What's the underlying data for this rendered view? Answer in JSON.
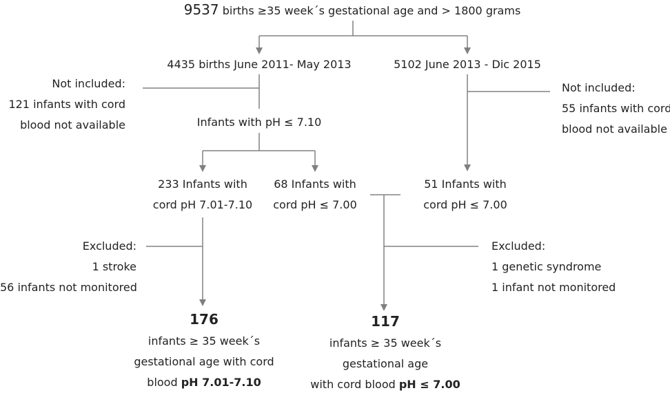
{
  "top": {
    "count": "9537",
    "label": "births ≥35 week´s gestational age and > 1800 grams"
  },
  "left_branch": {
    "title": "4435 births June 2011- May 2013",
    "not_included": [
      "Not included:",
      "121 infants with cord",
      "blood not available"
    ],
    "filter": "Infants with pH ≤ 7.10",
    "group_a": [
      "233 Infants with",
      "cord pH 7.01-7.10"
    ],
    "group_b": [
      "68 Infants with",
      "cord pH ≤ 7.00"
    ],
    "excluded": [
      "Excluded:",
      "1 stroke",
      "56 infants not monitored"
    ]
  },
  "right_branch": {
    "title": "5102 June 2013 - Dic 2015",
    "not_included": [
      "Not included:",
      "55 infants with cord",
      "blood not available"
    ],
    "group": [
      "51 Infants with",
      "cord pH ≤ 7.00"
    ],
    "excluded": [
      "Excluded:",
      "1 genetic syndrome",
      "1 infant not monitored"
    ]
  },
  "result_left": {
    "count": "176",
    "lines": [
      "infants ≥ 35 week´s",
      "gestational age with cord",
      "blood "
    ],
    "emph": "pH 7.01-7.10"
  },
  "result_right": {
    "count": "117",
    "lines": [
      "infants ≥ 35 week´s",
      "gestational age",
      "with cord blood "
    ],
    "emph": "pH ≤ 7.00"
  },
  "colors": {
    "line": "#808080",
    "text": "#222222"
  }
}
